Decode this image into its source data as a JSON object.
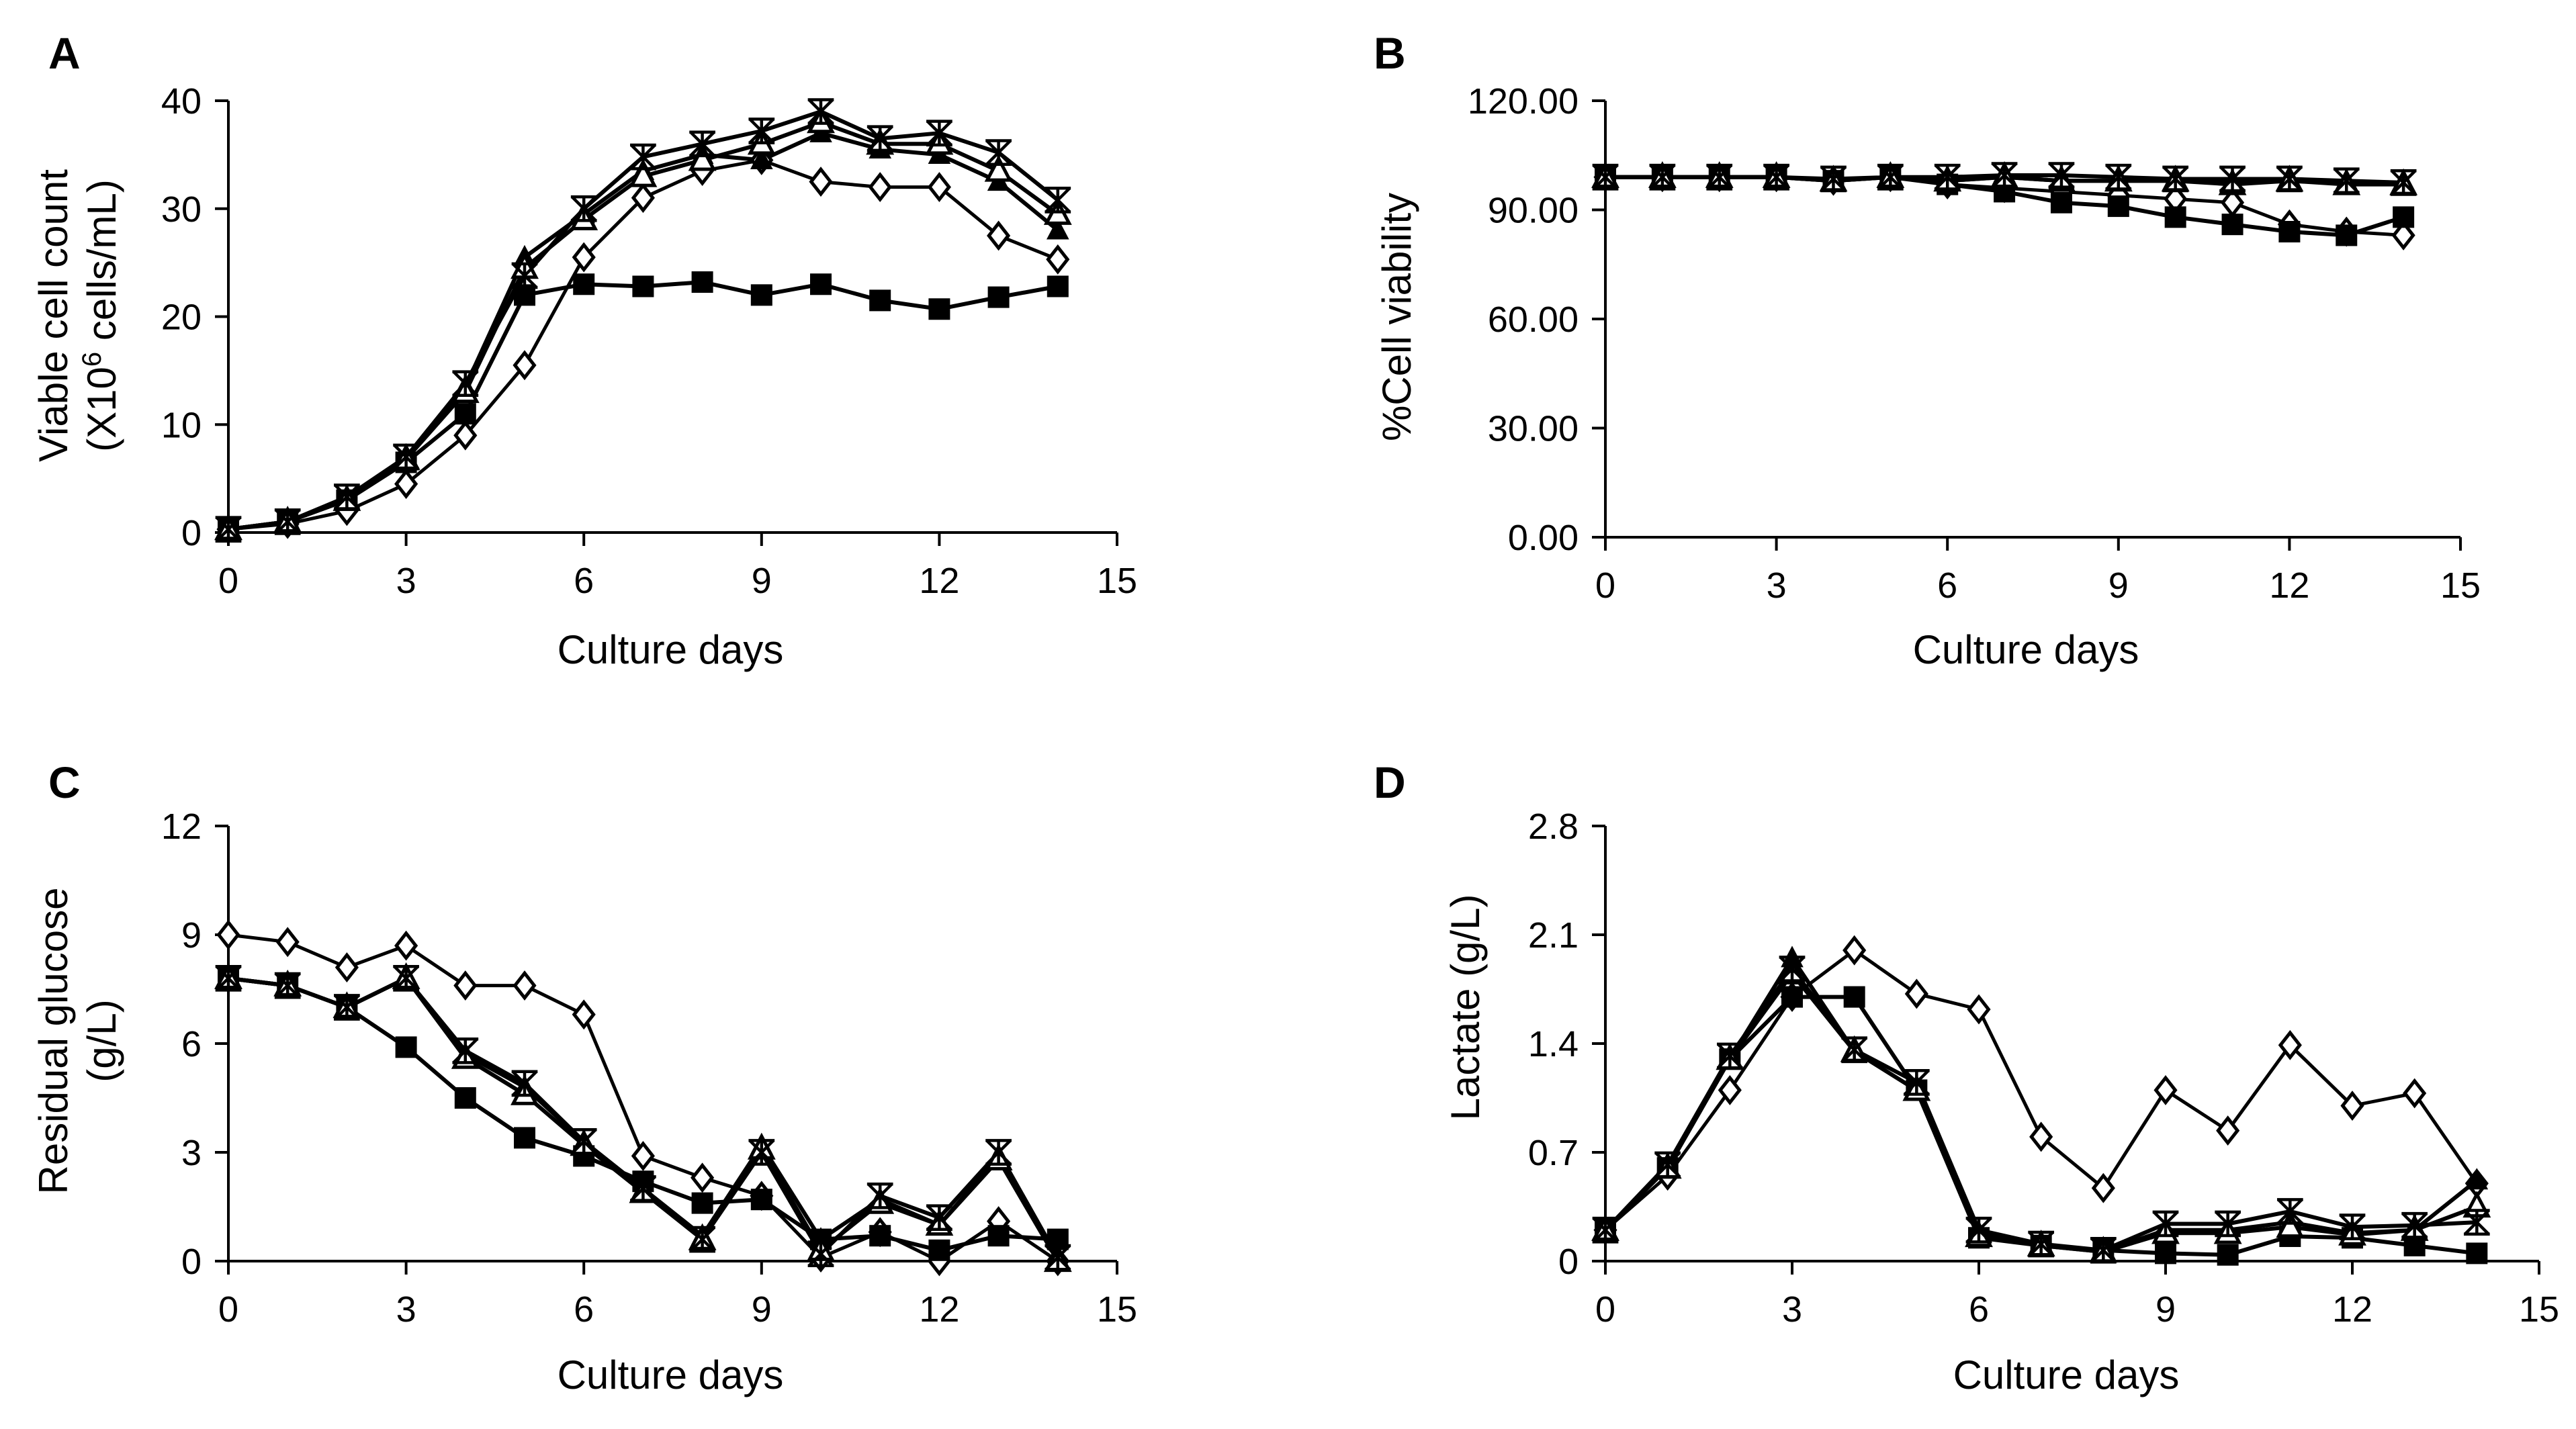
{
  "chart_data": [
    {
      "type": "line",
      "panel": "A",
      "xlabel": "Culture days",
      "ylabel_line1": "Viable cell count",
      "ylabel_line2_pre": "(X10",
      "ylabel_line2_sup": "6",
      "ylabel_line2_post": " cells/mL)",
      "xlim": [
        0,
        15
      ],
      "ylim": [
        0,
        40
      ],
      "xticks": [
        "0",
        "3",
        "6",
        "9",
        "12",
        "15"
      ],
      "yticks": [
        "0",
        "10",
        "20",
        "30",
        "40"
      ],
      "x": [
        0,
        1,
        2,
        3,
        4,
        5,
        6,
        7,
        8,
        9,
        10,
        11,
        12,
        13,
        14
      ],
      "series": [
        {
          "name": "open diamond",
          "marker": "diamond-open",
          "values": [
            0.3,
            0.8,
            2.0,
            4.5,
            9.0,
            15.5,
            25.5,
            31.0,
            33.5,
            34.5,
            32.5,
            32.0,
            32.0,
            27.5,
            25.3
          ]
        },
        {
          "name": "filled square",
          "marker": "square-filled",
          "values": [
            0.3,
            1.0,
            3.0,
            6.5,
            11.0,
            22.0,
            23.0,
            22.8,
            23.2,
            22.0,
            23.0,
            21.5,
            20.7,
            21.8,
            22.8
          ]
        },
        {
          "name": "filled triangle",
          "marker": "triangle-filled",
          "values": [
            0.3,
            1.0,
            3.2,
            7.0,
            13.5,
            25.5,
            29.5,
            33.5,
            35.0,
            34.5,
            37.0,
            35.5,
            35.0,
            32.5,
            28.0
          ]
        },
        {
          "name": "open triangle",
          "marker": "triangle-open",
          "values": [
            0.3,
            1.0,
            3.0,
            6.8,
            13.0,
            24.5,
            29.0,
            33.0,
            34.5,
            36.0,
            38.0,
            36.0,
            36.0,
            33.5,
            29.5
          ]
        },
        {
          "name": "asterisk",
          "marker": "asterisk",
          "values": [
            0.3,
            1.0,
            3.3,
            7.0,
            13.8,
            23.8,
            30.0,
            34.8,
            36.0,
            37.2,
            39.0,
            36.5,
            37.0,
            35.2,
            30.8
          ]
        }
      ]
    },
    {
      "type": "line",
      "panel": "B",
      "xlabel": "Culture days",
      "ylabel": "%Cell viability",
      "xlim": [
        0,
        15
      ],
      "ylim": [
        0,
        120
      ],
      "xticks": [
        "0",
        "3",
        "6",
        "9",
        "12",
        "15"
      ],
      "yticks": [
        "0.00",
        "30.00",
        "60.00",
        "90.00",
        "120.00"
      ],
      "x": [
        0,
        1,
        2,
        3,
        4,
        5,
        6,
        7,
        8,
        9,
        10,
        11,
        12,
        13,
        14
      ],
      "series": [
        {
          "name": "open diamond",
          "marker": "diamond-open",
          "values": [
            99,
            99,
            99,
            99,
            98,
            99,
            97,
            96,
            95,
            94,
            93,
            92,
            86,
            84,
            83
          ]
        },
        {
          "name": "filled square",
          "marker": "square-filled",
          "values": [
            99,
            99,
            99,
            99,
            98,
            99,
            97,
            95,
            92,
            91,
            88,
            86,
            84,
            83,
            88
          ]
        },
        {
          "name": "filled triangle",
          "marker": "triangle-filled",
          "values": [
            99,
            99,
            99,
            99,
            98,
            99,
            98,
            99,
            98,
            98,
            98,
            98,
            98,
            98,
            97
          ]
        },
        {
          "name": "open triangle",
          "marker": "triangle-open",
          "values": [
            99,
            99,
            99,
            99,
            98,
            99,
            98,
            99,
            98,
            98,
            98,
            97,
            98,
            97,
            97
          ]
        },
        {
          "name": "asterisk",
          "marker": "asterisk",
          "values": [
            99,
            99,
            99,
            99,
            98.5,
            99,
            99,
            99.5,
            99.5,
            99,
            98.5,
            98.5,
            98.5,
            98,
            97.5
          ]
        }
      ]
    },
    {
      "type": "line",
      "panel": "C",
      "xlabel": "Culture days",
      "ylabel_line1": "Residual glucose",
      "ylabel_line2": "(g/L)",
      "xlim": [
        0,
        15
      ],
      "ylim": [
        0,
        12
      ],
      "xticks": [
        "0",
        "3",
        "6",
        "9",
        "12",
        "15"
      ],
      "yticks": [
        "0",
        "3",
        "6",
        "9",
        "12"
      ],
      "x": [
        0,
        1,
        2,
        3,
        4,
        5,
        6,
        7,
        8,
        9,
        10,
        11,
        12,
        13,
        14
      ],
      "series": [
        {
          "name": "open diamond",
          "marker": "diamond-open",
          "values": [
            9.0,
            8.8,
            8.1,
            8.7,
            7.6,
            7.6,
            6.8,
            2.9,
            2.3,
            1.8,
            0.1,
            0.8,
            0.0,
            1.1,
            0.0
          ]
        },
        {
          "name": "filled square",
          "marker": "square-filled",
          "values": [
            7.8,
            7.6,
            7.0,
            5.9,
            4.5,
            3.4,
            2.9,
            2.2,
            1.6,
            1.7,
            0.6,
            0.7,
            0.3,
            0.7,
            0.6
          ]
        },
        {
          "name": "filled triangle",
          "marker": "triangle-filled",
          "values": [
            7.8,
            7.6,
            7.0,
            7.8,
            5.7,
            4.8,
            3.3,
            2.0,
            0.7,
            3.2,
            0.6,
            1.7,
            1.0,
            2.9,
            0.0
          ]
        },
        {
          "name": "open triangle",
          "marker": "triangle-open",
          "values": [
            7.8,
            7.6,
            7.0,
            7.8,
            5.6,
            4.6,
            3.2,
            1.9,
            0.6,
            3.1,
            0.3,
            1.6,
            1.0,
            2.8,
            0.0
          ]
        },
        {
          "name": "asterisk",
          "marker": "asterisk",
          "values": [
            7.8,
            7.6,
            7.0,
            7.8,
            5.8,
            4.9,
            3.3,
            2.0,
            0.6,
            3.0,
            0.2,
            1.8,
            1.2,
            3.0,
            0.1
          ]
        }
      ]
    },
    {
      "type": "line",
      "panel": "D",
      "xlabel": "Culture days",
      "ylabel": "Lactate (g/L)",
      "xlim": [
        0,
        15
      ],
      "ylim": [
        0,
        2.8
      ],
      "xticks": [
        "0",
        "3",
        "6",
        "9",
        "12",
        "15"
      ],
      "yticks": [
        "0",
        "0.7",
        "1.4",
        "2.1",
        "2.8"
      ],
      "x": [
        0,
        1,
        2,
        3,
        4,
        5,
        6,
        7,
        8,
        9,
        10,
        11,
        12,
        13,
        14
      ],
      "series": [
        {
          "name": "open diamond",
          "marker": "diamond-open",
          "values": [
            0.2,
            0.55,
            1.1,
            1.7,
            2.0,
            1.72,
            1.62,
            0.8,
            0.47,
            1.1,
            0.84,
            1.39,
            1.0,
            1.08,
            0.5
          ]
        },
        {
          "name": "filled square",
          "marker": "square-filled",
          "values": [
            0.2,
            0.6,
            1.3,
            1.7,
            1.7,
            1.1,
            0.15,
            0.1,
            0.07,
            0.05,
            0.04,
            0.16,
            0.15,
            0.1,
            0.05
          ]
        },
        {
          "name": "filled triangle",
          "marker": "triangle-filled",
          "values": [
            0.2,
            0.6,
            1.3,
            1.95,
            1.35,
            1.1,
            0.18,
            0.1,
            0.06,
            0.2,
            0.2,
            0.25,
            0.18,
            0.2,
            0.52
          ]
        },
        {
          "name": "open triangle",
          "marker": "triangle-open",
          "values": [
            0.2,
            0.6,
            1.3,
            1.85,
            1.35,
            1.1,
            0.16,
            0.1,
            0.06,
            0.18,
            0.18,
            0.22,
            0.17,
            0.2,
            0.35
          ]
        },
        {
          "name": "asterisk",
          "marker": "asterisk",
          "values": [
            0.2,
            0.62,
            1.32,
            1.88,
            1.36,
            1.15,
            0.2,
            0.11,
            0.07,
            0.24,
            0.24,
            0.32,
            0.22,
            0.23,
            0.25
          ]
        }
      ]
    }
  ]
}
